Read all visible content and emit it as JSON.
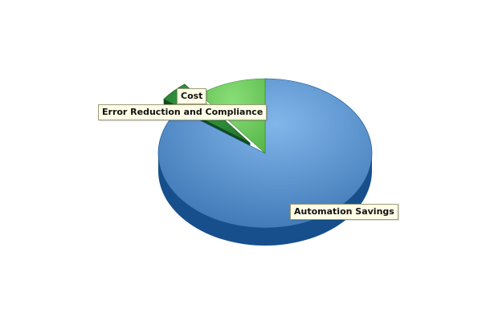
{
  "chart_data": {
    "type": "pie",
    "title": "",
    "three_d": true,
    "legend": "none",
    "slices": [
      {
        "label": "Automation Savings",
        "value": 85.0,
        "color": "#4f8ccb",
        "dark_color": "#174f8c"
      },
      {
        "label": "Cost",
        "value": 4.5,
        "color": "#2f8a3a",
        "dark_color": "#0f4d18",
        "exploded": true
      },
      {
        "label": "Error Reduction and Compliance",
        "value": 10.5,
        "color": "#6cc95c",
        "dark_color": "#3d8f34"
      }
    ]
  }
}
